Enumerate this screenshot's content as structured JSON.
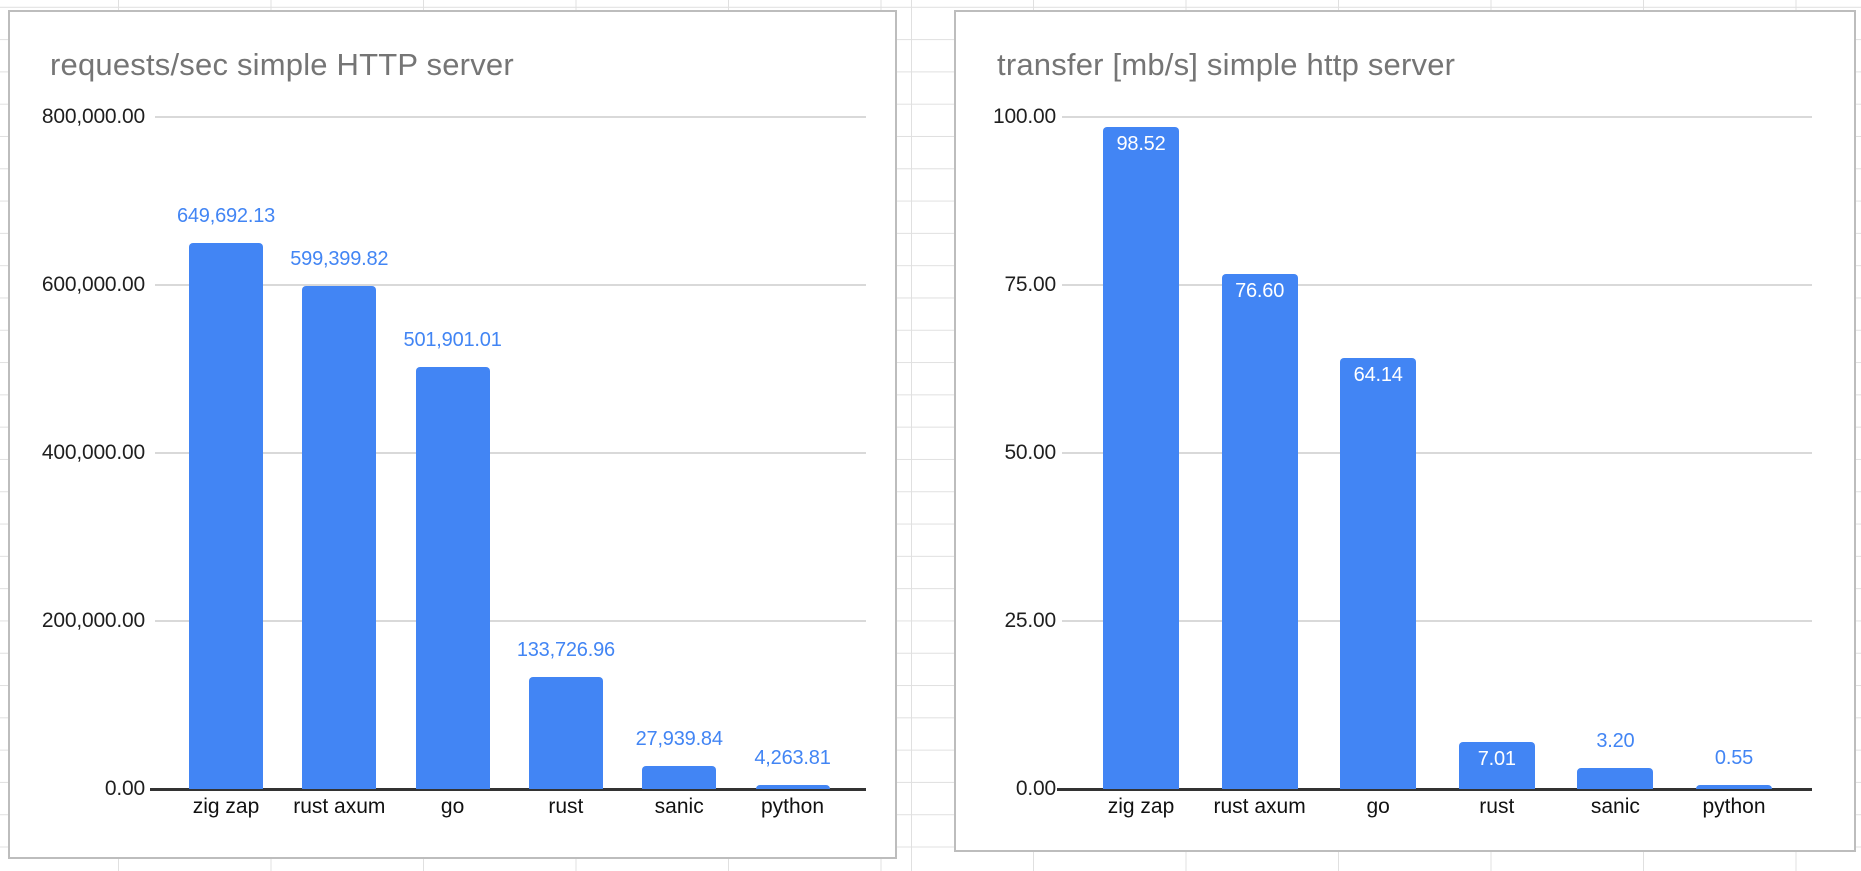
{
  "surface": {
    "type": "spreadsheet-grid-background",
    "sheet_grid_color": "#e0e0e0"
  },
  "colors": {
    "bar": "#4285f4",
    "value_label_above": "#4285f4",
    "value_label_inside": "#ffffff",
    "title": "#757575",
    "axis_text": "#1f1f1f",
    "gridline": "#d9d9d9",
    "axis_line": "#333333",
    "panel_border": "#bdbdbd"
  },
  "chart_data": [
    {
      "type": "bar",
      "title": "requests/sec simple HTTP server",
      "categories": [
        "zig zap",
        "rust axum",
        "go",
        "rust",
        "sanic",
        "python"
      ],
      "values": [
        649692.13,
        599399.82,
        501901.01,
        133726.96,
        27939.84,
        4263.81
      ],
      "value_labels": [
        "649,692.13",
        "599,399.82",
        "501,901.01",
        "133,726.96",
        "27,939.84",
        "4,263.81"
      ],
      "value_label_placement": [
        "above",
        "above",
        "above",
        "above",
        "above",
        "above"
      ],
      "xlabel": "",
      "ylabel": "",
      "ylim": [
        0,
        800000
      ],
      "ytick_labels": [
        "800,000.00",
        "600,000.00",
        "400,000.00",
        "200,000.00",
        "0.00"
      ],
      "grid": "horizontal",
      "legend": "none",
      "bar_color": "#4285f4"
    },
    {
      "type": "bar",
      "title": "transfer [mb/s] simple http server",
      "categories": [
        "zig zap",
        "rust axum",
        "go",
        "rust",
        "sanic",
        "python"
      ],
      "values": [
        98.52,
        76.6,
        64.14,
        7.01,
        3.2,
        0.55
      ],
      "value_labels": [
        "98.52",
        "76.60",
        "64.14",
        "7.01",
        "3.20",
        "0.55"
      ],
      "value_label_placement": [
        "inside",
        "inside",
        "inside",
        "inside",
        "above",
        "above"
      ],
      "xlabel": "",
      "ylabel": "",
      "ylim": [
        0,
        100
      ],
      "ytick_labels": [
        "100.00",
        "75.00",
        "50.00",
        "25.00",
        "0.00"
      ],
      "grid": "horizontal",
      "legend": "none",
      "bar_color": "#4285f4"
    }
  ]
}
